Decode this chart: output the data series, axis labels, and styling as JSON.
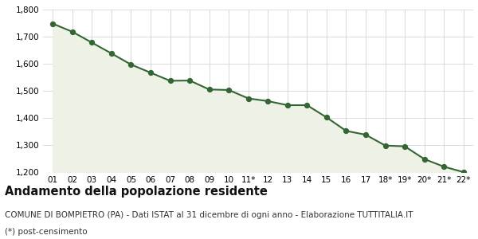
{
  "x_labels": [
    "01",
    "02",
    "03",
    "04",
    "05",
    "06",
    "07",
    "08",
    "09",
    "10",
    "11*",
    "12",
    "13",
    "14",
    "15",
    "16",
    "17",
    "18*",
    "19*",
    "20*",
    "21*",
    "22*"
  ],
  "values": [
    1748,
    1718,
    1678,
    1638,
    1597,
    1567,
    1537,
    1538,
    1505,
    1503,
    1472,
    1462,
    1447,
    1447,
    1402,
    1352,
    1338,
    1298,
    1295,
    1248,
    1220,
    1200
  ],
  "ylim": [
    1200,
    1800
  ],
  "yticks": [
    1200,
    1300,
    1400,
    1500,
    1600,
    1700,
    1800
  ],
  "line_color": "#336633",
  "fill_color": "#eef2e6",
  "marker_color": "#336633",
  "background_color": "#ffffff",
  "grid_color": "#cccccc",
  "title": "Andamento della popolazione residente",
  "subtitle": "COMUNE DI BOMPIETRO (PA) - Dati ISTAT al 31 dicembre di ogni anno - Elaborazione TUTTITALIA.IT",
  "footnote": "(*) post-censimento",
  "title_fontsize": 10.5,
  "subtitle_fontsize": 7.5,
  "footnote_fontsize": 7.5
}
